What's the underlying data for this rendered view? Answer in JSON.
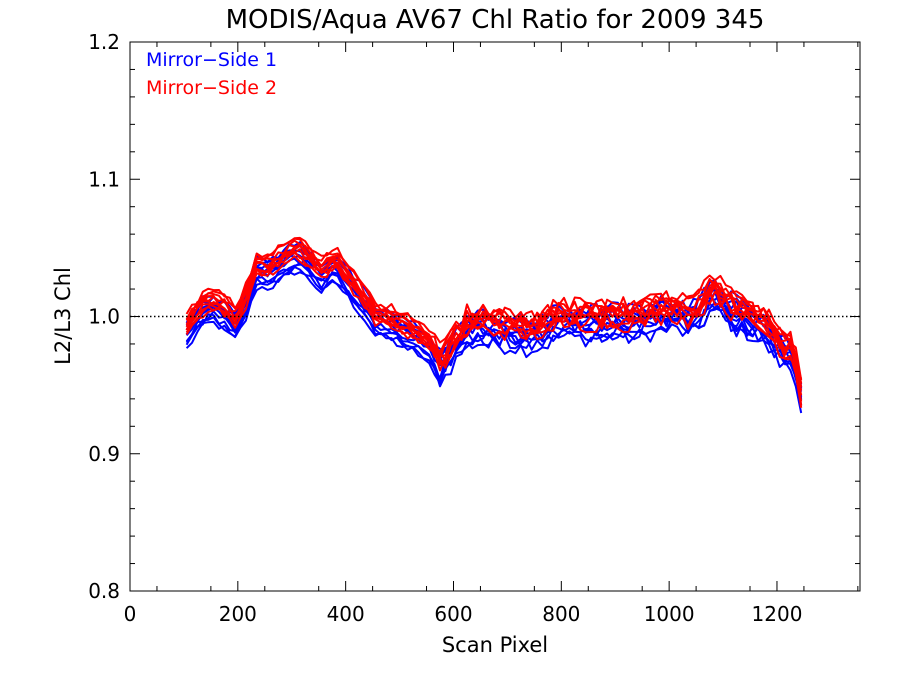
{
  "chart_data": {
    "type": "line",
    "title": "MODIS/Aqua AV67 Chl Ratio for 2009 345",
    "xlabel": "Scan Pixel",
    "ylabel": "L2/L3 Chl",
    "xlim": [
      0,
      1354
    ],
    "ylim": [
      0.8,
      1.2
    ],
    "xticks": [
      0,
      200,
      400,
      600,
      800,
      1000,
      1200
    ],
    "xtick_labels": [
      "0",
      "200",
      "400",
      "600",
      "800",
      "1000",
      "1200"
    ],
    "yticks": [
      0.8,
      0.9,
      1.0,
      1.1,
      1.2
    ],
    "ytick_labels": [
      "0.8",
      "0.9",
      "1.0",
      "1.1",
      "1.2"
    ],
    "grid": false,
    "legend_position": "top-left",
    "reference_line": {
      "y": 1.0,
      "style": "dotted"
    },
    "legend": [
      {
        "label": "Mirror−Side 1",
        "color": "#0000ff"
      },
      {
        "label": "Mirror−Side 2",
        "color": "#ff0000"
      }
    ],
    "base_profile": [
      [
        105,
        0.99
      ],
      [
        130,
        1.005
      ],
      [
        150,
        1.01
      ],
      [
        175,
        1.005
      ],
      [
        195,
        0.997
      ],
      [
        215,
        1.012
      ],
      [
        235,
        1.035
      ],
      [
        260,
        1.035
      ],
      [
        285,
        1.042
      ],
      [
        310,
        1.048
      ],
      [
        335,
        1.04
      ],
      [
        355,
        1.032
      ],
      [
        380,
        1.04
      ],
      [
        400,
        1.03
      ],
      [
        430,
        1.015
      ],
      [
        455,
        1.0
      ],
      [
        480,
        0.998
      ],
      [
        500,
        0.993
      ],
      [
        530,
        0.988
      ],
      [
        555,
        0.98
      ],
      [
        578,
        0.966
      ],
      [
        600,
        0.98
      ],
      [
        625,
        0.993
      ],
      [
        650,
        0.995
      ],
      [
        680,
        0.993
      ],
      [
        710,
        0.992
      ],
      [
        740,
        0.99
      ],
      [
        770,
        0.993
      ],
      [
        800,
        1.0
      ],
      [
        830,
        0.998
      ],
      [
        860,
        0.998
      ],
      [
        890,
        1.0
      ],
      [
        920,
        0.998
      ],
      [
        950,
        1.0
      ],
      [
        980,
        1.003
      ],
      [
        1010,
        1.005
      ],
      [
        1040,
        1.0
      ],
      [
        1060,
        1.008
      ],
      [
        1080,
        1.02
      ],
      [
        1100,
        1.012
      ],
      [
        1120,
        1.005
      ],
      [
        1140,
        1.003
      ],
      [
        1160,
        0.998
      ],
      [
        1185,
        0.99
      ],
      [
        1210,
        0.978
      ],
      [
        1230,
        0.975
      ],
      [
        1248,
        0.935
      ]
    ],
    "series": [
      {
        "name": "Mirror−Side 1",
        "color": "#0000ff",
        "line_count": 10,
        "offset_range": [
          -0.014,
          0.006
        ],
        "noise": 0.006
      },
      {
        "name": "Mirror−Side 2",
        "color": "#ff0000",
        "line_count": 10,
        "offset_range": [
          -0.004,
          0.01
        ],
        "noise": 0.006
      }
    ]
  }
}
